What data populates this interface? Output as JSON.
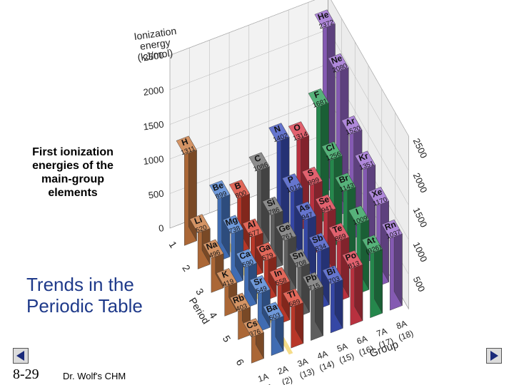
{
  "caption": {
    "line1": "First ionization",
    "line2": "energies of the",
    "line3": "main-group",
    "line4": "elements"
  },
  "slide": {
    "title_line1": "Trends in the",
    "title_line2": "Periodic Table",
    "number": "8-29",
    "footer": "Dr. Wolf's CHM"
  },
  "chart_data": {
    "type": "bar",
    "subtype": "3d-bar",
    "title": "",
    "zlabel": [
      "Ionization",
      "energy",
      "(kJ/mol)"
    ],
    "back_wall_ticks": [
      "0",
      "500",
      "1000",
      "1500",
      "2000",
      "2500"
    ],
    "right_axis_ticks": [
      "500",
      "1000",
      "1500",
      "2000",
      "2500"
    ],
    "zlim": [
      0,
      2500
    ],
    "ylabel": "Period",
    "periods": [
      "1",
      "2",
      "3",
      "4",
      "5",
      "6"
    ],
    "xlabel": "Group",
    "groups": [
      {
        "top": "1A",
        "bottom": "(1)"
      },
      {
        "top": "2A",
        "bottom": "(2)"
      },
      {
        "top": "3A",
        "bottom": "(13)"
      },
      {
        "top": "4A",
        "bottom": "(14)"
      },
      {
        "top": "5A",
        "bottom": "(15)"
      },
      {
        "top": "6A",
        "bottom": "(16)"
      },
      {
        "top": "7A",
        "bottom": "(17)"
      },
      {
        "top": "8A",
        "bottom": "(18)"
      }
    ],
    "group_colors": [
      "#c9793f",
      "#4b7fd1",
      "#d9412f",
      "#6f6f6f",
      "#3e53c2",
      "#d93a4a",
      "#2c9f59",
      "#9b6ad1"
    ],
    "grid": true,
    "elements": [
      {
        "symbol": "H",
        "value": "1311",
        "group": 0,
        "period": 1
      },
      {
        "symbol": "He",
        "value": "2372",
        "group": 7,
        "period": 1
      },
      {
        "symbol": "Li",
        "value": "520",
        "group": 0,
        "period": 2
      },
      {
        "symbol": "Be",
        "value": "899",
        "group": 1,
        "period": 2
      },
      {
        "symbol": "B",
        "value": "800",
        "group": 2,
        "period": 2
      },
      {
        "symbol": "C",
        "value": "1086",
        "group": 3,
        "period": 2
      },
      {
        "symbol": "N",
        "value": "1402",
        "group": 4,
        "period": 2
      },
      {
        "symbol": "O",
        "value": "1314",
        "group": 5,
        "period": 2
      },
      {
        "symbol": "F",
        "value": "1681",
        "group": 6,
        "period": 2
      },
      {
        "symbol": "Ne",
        "value": "2080",
        "group": 7,
        "period": 2
      },
      {
        "symbol": "Na",
        "value": "496",
        "group": 0,
        "period": 3
      },
      {
        "symbol": "Mg",
        "value": "738",
        "group": 1,
        "period": 3
      },
      {
        "symbol": "Al",
        "value": "577",
        "group": 2,
        "period": 3
      },
      {
        "symbol": "Si",
        "value": "786",
        "group": 3,
        "period": 3
      },
      {
        "symbol": "P",
        "value": "1012",
        "group": 4,
        "period": 3
      },
      {
        "symbol": "S",
        "value": "999",
        "group": 5,
        "period": 3
      },
      {
        "symbol": "Cl",
        "value": "1256",
        "group": 6,
        "period": 3
      },
      {
        "symbol": "Ar",
        "value": "1520",
        "group": 7,
        "period": 3
      },
      {
        "symbol": "K",
        "value": "419",
        "group": 0,
        "period": 4
      },
      {
        "symbol": "Ca",
        "value": "590",
        "group": 1,
        "period": 4
      },
      {
        "symbol": "Ga",
        "value": "579",
        "group": 2,
        "period": 4
      },
      {
        "symbol": "Ge",
        "value": "761",
        "group": 3,
        "period": 4
      },
      {
        "symbol": "As",
        "value": "947",
        "group": 4,
        "period": 4
      },
      {
        "symbol": "Se",
        "value": "941",
        "group": 5,
        "period": 4
      },
      {
        "symbol": "Br",
        "value": "1143",
        "group": 6,
        "period": 4
      },
      {
        "symbol": "Kr",
        "value": "1351",
        "group": 7,
        "period": 4
      },
      {
        "symbol": "Rb",
        "value": "403",
        "group": 0,
        "period": 5
      },
      {
        "symbol": "Sr",
        "value": "549",
        "group": 1,
        "period": 5
      },
      {
        "symbol": "In",
        "value": "558",
        "group": 2,
        "period": 5
      },
      {
        "symbol": "Sn",
        "value": "708",
        "group": 3,
        "period": 5
      },
      {
        "symbol": "Sb",
        "value": "834",
        "group": 4,
        "period": 5
      },
      {
        "symbol": "Te",
        "value": "869",
        "group": 5,
        "period": 5
      },
      {
        "symbol": "I",
        "value": "1009",
        "group": 6,
        "period": 5
      },
      {
        "symbol": "Xe",
        "value": "1170",
        "group": 7,
        "period": 5
      },
      {
        "symbol": "Cs",
        "value": "376",
        "group": 0,
        "period": 6
      },
      {
        "symbol": "Ba",
        "value": "503",
        "group": 1,
        "period": 6
      },
      {
        "symbol": "Tl",
        "value": "589",
        "group": 2,
        "period": 6
      },
      {
        "symbol": "Pb",
        "value": "715",
        "group": 3,
        "period": 6
      },
      {
        "symbol": "Bi",
        "value": "703",
        "group": 4,
        "period": 6
      },
      {
        "symbol": "Po",
        "value": "813",
        "group": 5,
        "period": 6
      },
      {
        "symbol": "At",
        "value": "(926)",
        "group": 6,
        "period": 6
      },
      {
        "symbol": "Rn",
        "value": "1037",
        "group": 7,
        "period": 6
      }
    ]
  }
}
